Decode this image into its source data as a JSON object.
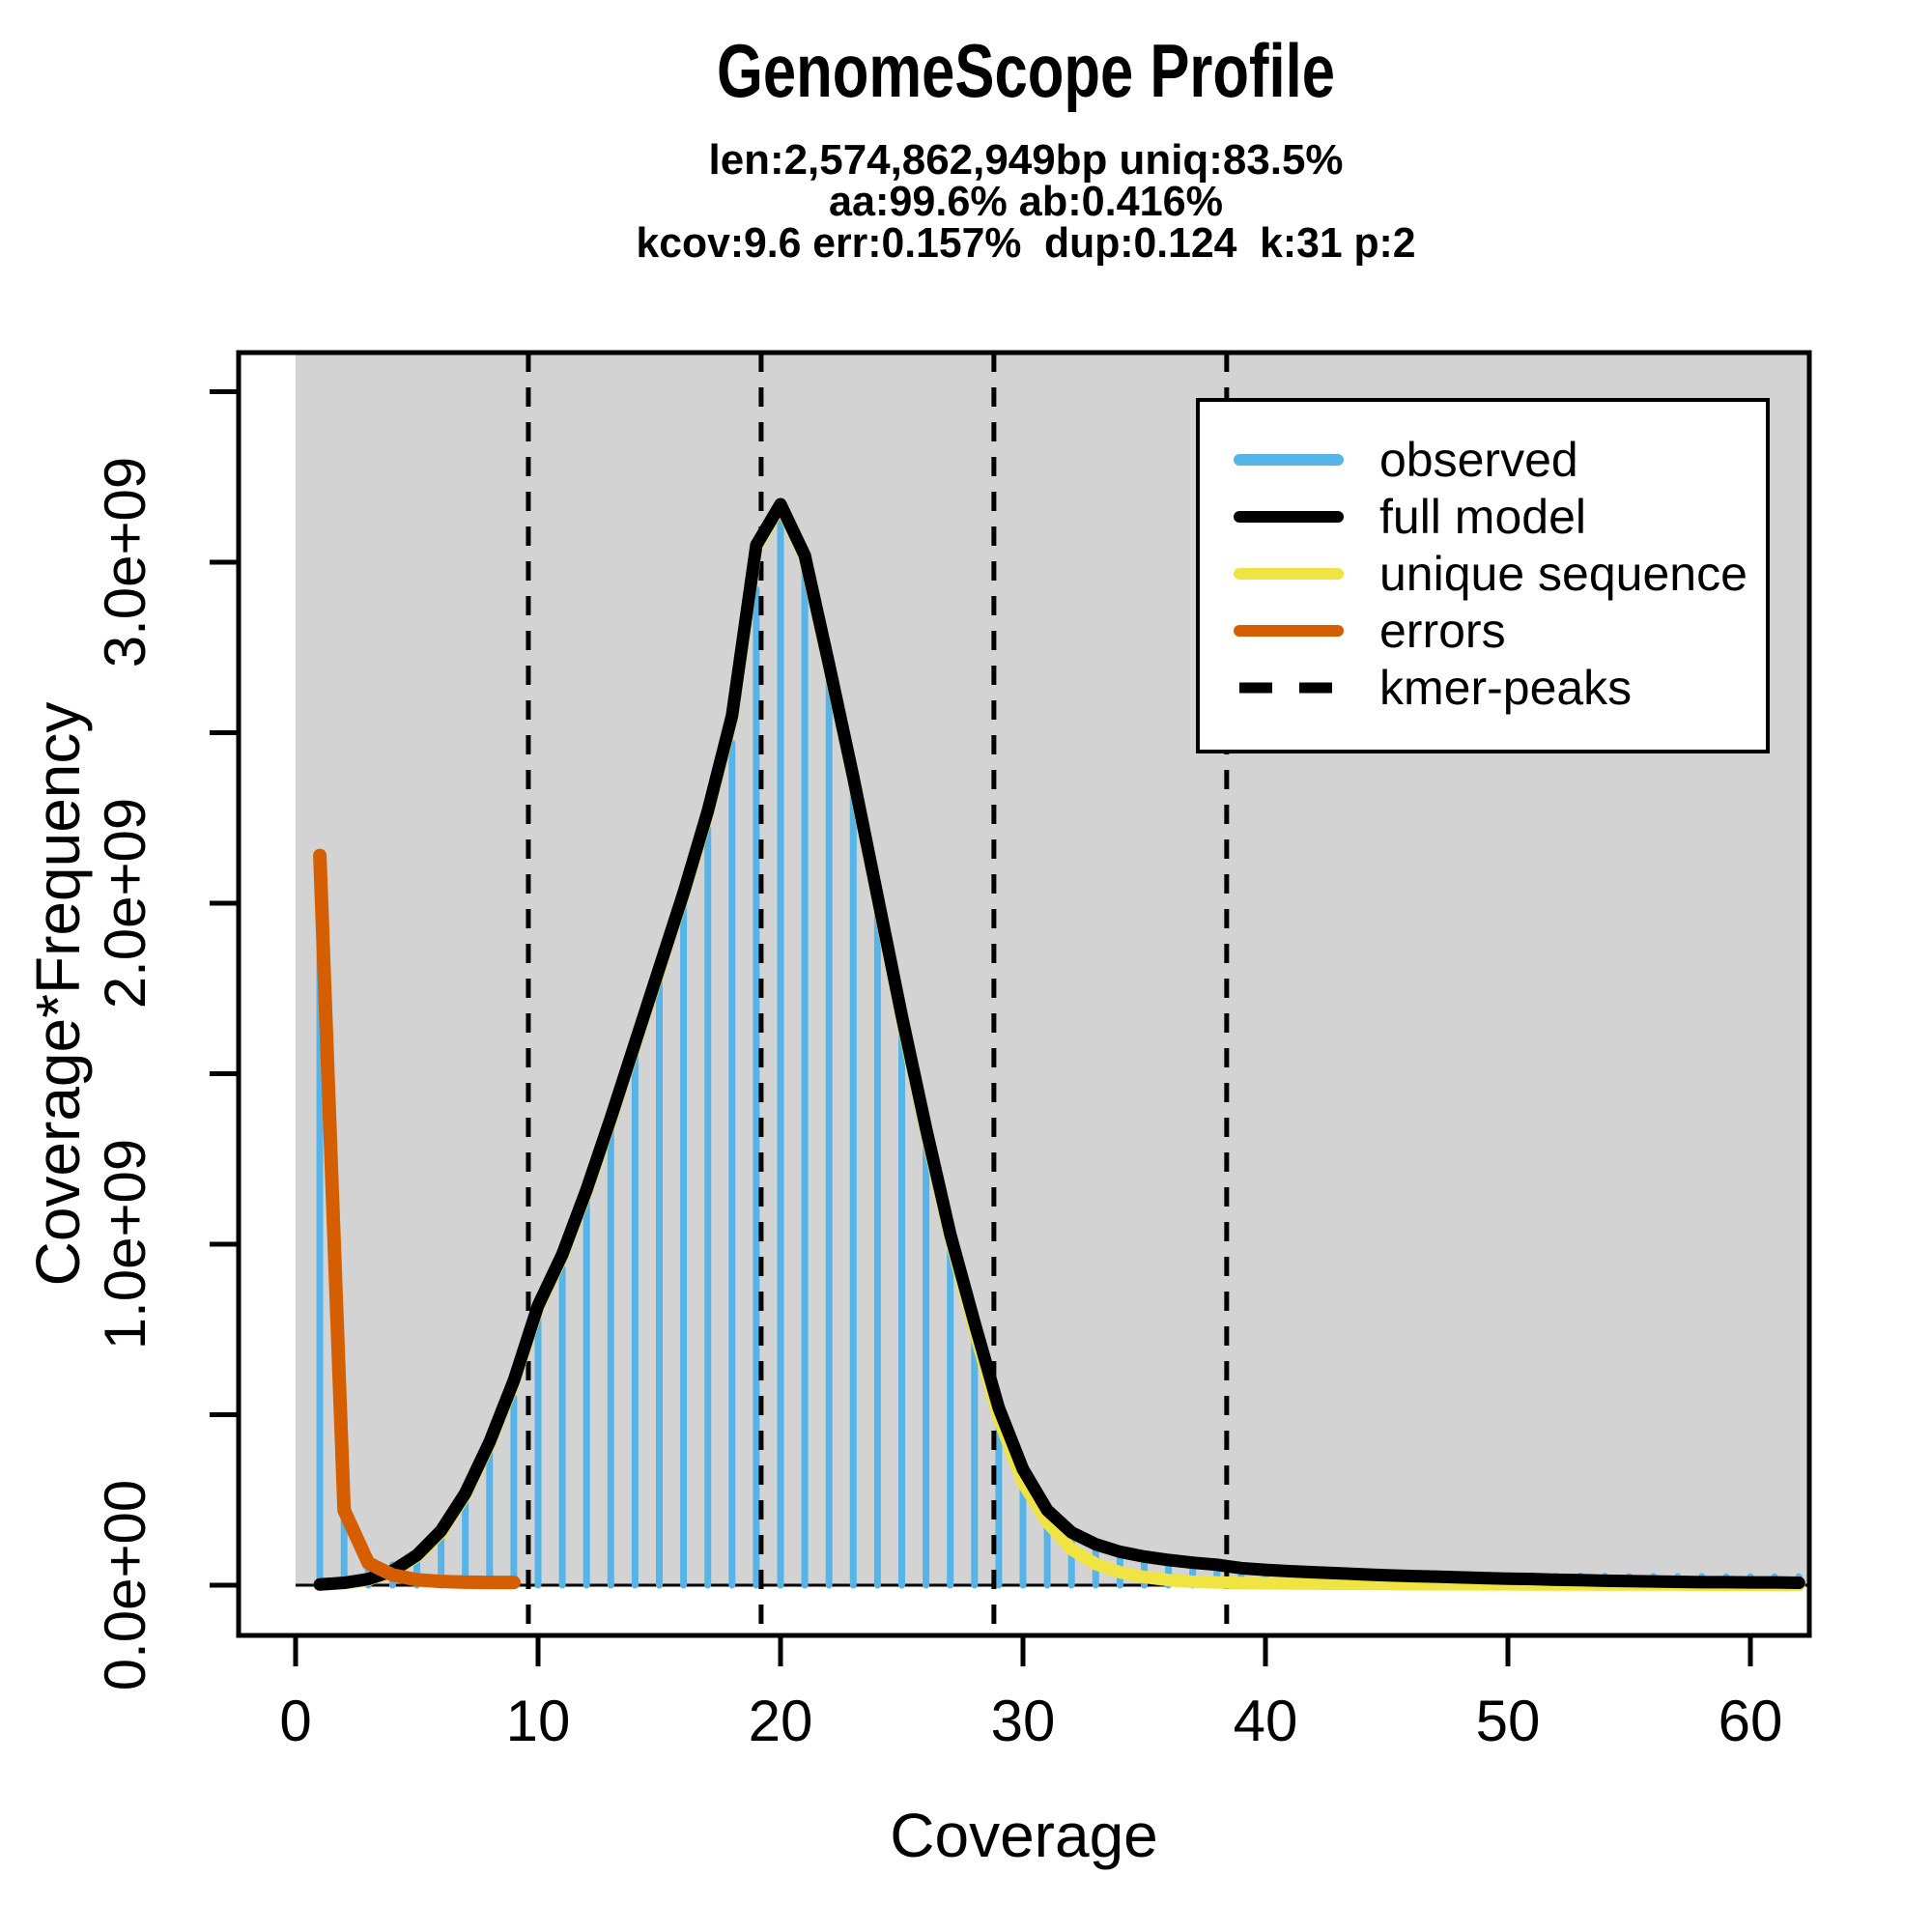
{
  "header": {
    "title": "GenomeScope Profile",
    "subtitle_lines": [
      "len:2,574,862,949bp uniq:83.5%",
      "aa:99.6% ab:0.416%",
      "kcov:9.6 err:0.157%  dup:0.124  k:31 p:2"
    ]
  },
  "colors": {
    "background": "#FFFFFF",
    "panel_bg": "#D3D3D3",
    "observed": "#56B4E9",
    "full_model": "#000000",
    "unique": "#F0E442",
    "errors": "#D55E00",
    "axis": "#000000"
  },
  "axes": {
    "x": {
      "label": "Coverage",
      "ticks": [
        0,
        10,
        20,
        30,
        40,
        50,
        60
      ],
      "range": [
        0,
        62.4
      ]
    },
    "y": {
      "label": "Coverage*Frequency",
      "tick_values": [
        0,
        500000000.0,
        1000000000.0,
        1500000000.0,
        2000000000.0,
        2500000000.0,
        3000000000.0,
        3500000000.0
      ],
      "tick_labels": [
        "0.0e+00",
        "",
        "1.0e+09",
        "",
        "2.0e+09",
        "",
        "3.0e+09",
        ""
      ],
      "range": [
        0,
        3610000000.0
      ]
    }
  },
  "legend": {
    "items": [
      {
        "label": "observed",
        "color": "#56B4E9",
        "style": "solid"
      },
      {
        "label": "full model",
        "color": "#000000",
        "style": "solid"
      },
      {
        "label": "unique sequence",
        "color": "#F0E442",
        "style": "solid"
      },
      {
        "label": "errors",
        "color": "#D55E00",
        "style": "solid"
      },
      {
        "label": "kmer-peaks",
        "color": "#000000",
        "style": "dashed"
      }
    ]
  },
  "chart_data": {
    "type": "bar",
    "title": "GenomeScope Profile",
    "xlabel": "Coverage",
    "ylabel": "Coverage*Frequency",
    "xlim": [
      0,
      62.4
    ],
    "ylim": [
      0,
      3610000000.0
    ],
    "grid": false,
    "legend_position": "top-right",
    "series": {
      "observed": {
        "name": "observed",
        "type": "histogram-bars",
        "x_start": 1,
        "values": [
          2120000000.0,
          200000000.0,
          70000000.0,
          60000000.0,
          80000000.0,
          150000000.0,
          250000000.0,
          390000000.0,
          550000000.0,
          780000000.0,
          930000000.0,
          1130000000.0,
          1340000000.0,
          1560000000.0,
          1780000000.0,
          2000000000.0,
          2220000000.0,
          2470000000.0,
          2920000000.0,
          3120000000.0,
          2980000000.0,
          2660000000.0,
          2320000000.0,
          1980000000.0,
          1630000000.0,
          1310000000.0,
          1000000000.0,
          740000000.0,
          500000000.0,
          320000000.0,
          200000000.0,
          135000000.0,
          100000000.0,
          78000000.0,
          64000000.0,
          55000000.0,
          49000000.0,
          45000000.0,
          42000000.0,
          38000000.0,
          36000000.0,
          35000000.0,
          34000000.0,
          33000000.0,
          32000000.0,
          31000000.0,
          30000000.0,
          29000000.0,
          29000000.0,
          28000000.0,
          28000000.0,
          27000000.0,
          27000000.0,
          27000000.0,
          26000000.0,
          26000000.0,
          26000000.0,
          26000000.0,
          25000000.0,
          25000000.0,
          25000000.0,
          25000000.0
        ]
      },
      "full_model": {
        "name": "full model",
        "type": "line",
        "points": [
          [
            1,
            2000000.0
          ],
          [
            2,
            7000000.0
          ],
          [
            3,
            18000000.0
          ],
          [
            4,
            42000000.0
          ],
          [
            5,
            88000000.0
          ],
          [
            6,
            160000000.0
          ],
          [
            7,
            270000000.0
          ],
          [
            8,
            420000000.0
          ],
          [
            9,
            600000000.0
          ],
          [
            10,
            820000000.0
          ],
          [
            11,
            970000000.0
          ],
          [
            12,
            1160000000.0
          ],
          [
            13,
            1370000000.0
          ],
          [
            14,
            1590000000.0
          ],
          [
            15,
            1810000000.0
          ],
          [
            16,
            2030000000.0
          ],
          [
            17,
            2270000000.0
          ],
          [
            18,
            2550000000.0
          ],
          [
            19,
            3050000000.0
          ],
          [
            20,
            3170000000.0
          ],
          [
            21,
            3020000000.0
          ],
          [
            22,
            2700000000.0
          ],
          [
            23,
            2370000000.0
          ],
          [
            24,
            2020000000.0
          ],
          [
            25,
            1670000000.0
          ],
          [
            26,
            1340000000.0
          ],
          [
            27,
            1030000000.0
          ],
          [
            28,
            770000000.0
          ],
          [
            29,
            520000000.0
          ],
          [
            30,
            340000000.0
          ],
          [
            31,
            220000000.0
          ],
          [
            32,
            155000000.0
          ],
          [
            33,
            120000000.0
          ],
          [
            34,
            98000000.0
          ],
          [
            35,
            84000000.0
          ],
          [
            36,
            74000000.0
          ],
          [
            37,
            66000000.0
          ],
          [
            38,
            60000000.0
          ],
          [
            39,
            50000000.0
          ],
          [
            40,
            45000000.0
          ],
          [
            41,
            41000000.0
          ],
          [
            42,
            38000000.0
          ],
          [
            43,
            35000000.0
          ],
          [
            44,
            32000000.0
          ],
          [
            45,
            29000000.0
          ],
          [
            46,
            27000000.0
          ],
          [
            47,
            25000000.0
          ],
          [
            48,
            23000000.0
          ],
          [
            49,
            21000000.0
          ],
          [
            50,
            19000000.0
          ],
          [
            51,
            18000000.0
          ],
          [
            52,
            16000000.0
          ],
          [
            53,
            15000000.0
          ],
          [
            54,
            13000000.0
          ],
          [
            55,
            12000000.0
          ],
          [
            56,
            11000000.0
          ],
          [
            57,
            10000000.0
          ],
          [
            58,
            9000000.0
          ],
          [
            59,
            9000000.0
          ],
          [
            60,
            8000000.0
          ],
          [
            61,
            8000000.0
          ],
          [
            62,
            7000000.0
          ]
        ]
      },
      "unique": {
        "name": "unique sequence",
        "type": "line",
        "points": [
          [
            1,
            2000000.0
          ],
          [
            2,
            6000000.0
          ],
          [
            3,
            16000000.0
          ],
          [
            4,
            40000000.0
          ],
          [
            5,
            85000000.0
          ],
          [
            6,
            155000000.0
          ],
          [
            7,
            265000000.0
          ],
          [
            8,
            415000000.0
          ],
          [
            9,
            595000000.0
          ],
          [
            10,
            815000000.0
          ],
          [
            11,
            965000000.0
          ],
          [
            12,
            1155000000.0
          ],
          [
            13,
            1365000000.0
          ],
          [
            14,
            1585000000.0
          ],
          [
            15,
            1805000000.0
          ],
          [
            16,
            2025000000.0
          ],
          [
            17,
            2265000000.0
          ],
          [
            18,
            2545000000.0
          ],
          [
            19,
            3045000000.0
          ],
          [
            20,
            3165000000.0
          ],
          [
            21,
            3015000000.0
          ],
          [
            22,
            2695000000.0
          ],
          [
            23,
            2365000000.0
          ],
          [
            24,
            2015000000.0
          ],
          [
            25,
            1660000000.0
          ],
          [
            26,
            1330000000.0
          ],
          [
            27,
            1020000000.0
          ],
          [
            28,
            750000000.0
          ],
          [
            29,
            490000000.0
          ],
          [
            30,
            300000000.0
          ],
          [
            31,
            185000000.0
          ],
          [
            32,
            105000000.0
          ],
          [
            33,
            62000000.0
          ],
          [
            34,
            38000000.0
          ],
          [
            35,
            24000000.0
          ],
          [
            36,
            15000000.0
          ],
          [
            37,
            10000000.0
          ],
          [
            38,
            8000000.0
          ],
          [
            39,
            6500000.0
          ],
          [
            40,
            5500000.0
          ],
          [
            41,
            5000000.0
          ],
          [
            42,
            4500000.0
          ],
          [
            43,
            4000000.0
          ],
          [
            44,
            4000000.0
          ],
          [
            45,
            3500000.0
          ],
          [
            46,
            3000000.0
          ],
          [
            47,
            3000000.0
          ],
          [
            48,
            3000000.0
          ],
          [
            49,
            2500000.0
          ],
          [
            50,
            2500000.0
          ],
          [
            51,
            2000000.0
          ],
          [
            52,
            2000000.0
          ],
          [
            53,
            2000000.0
          ],
          [
            54,
            2000000.0
          ],
          [
            55,
            2000000.0
          ],
          [
            56,
            2000000.0
          ],
          [
            57,
            2000000.0
          ],
          [
            58,
            1500000.0
          ],
          [
            59,
            1500000.0
          ],
          [
            60,
            1500000.0
          ],
          [
            61,
            1500000.0
          ],
          [
            62,
            1500000.0
          ]
        ]
      },
      "errors": {
        "name": "errors",
        "type": "line",
        "points": [
          [
            1,
            2140000000.0
          ],
          [
            2,
            220000000.0
          ],
          [
            3,
            65000000.0
          ],
          [
            4,
            30000000.0
          ],
          [
            5,
            16000000.0
          ],
          [
            6,
            11000000.0
          ],
          [
            7,
            9000000.0
          ],
          [
            8,
            8000000.0
          ],
          [
            9,
            8000000.0
          ]
        ]
      },
      "kmer_peaks": {
        "name": "kmer-peaks",
        "type": "vertical-dashed-lines",
        "x": [
          9.6,
          19.2,
          28.8,
          38.4
        ]
      }
    }
  }
}
